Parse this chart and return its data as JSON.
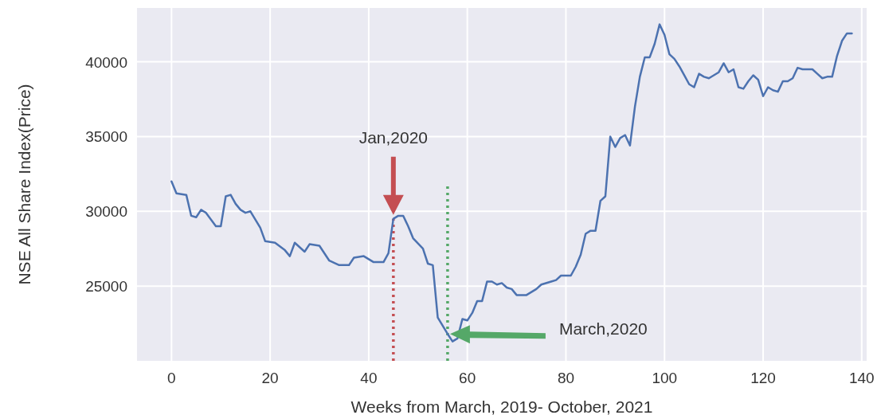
{
  "chart_data": {
    "type": "line",
    "xlabel": "Weeks from March, 2019- October, 2021",
    "ylabel": "NSE All Share Index(Price)",
    "xlim": [
      -7,
      141
    ],
    "ylim": [
      20000,
      43600
    ],
    "xticks": [
      0,
      20,
      40,
      60,
      80,
      100,
      120,
      140
    ],
    "yticks": [
      25000,
      30000,
      35000,
      40000
    ],
    "grid": true,
    "marker": "none",
    "line_style": "solid",
    "x": [
      0,
      1,
      3,
      4,
      5,
      6,
      7,
      9,
      10,
      11,
      12,
      13,
      14,
      15,
      16,
      18,
      19,
      21,
      23,
      24,
      25,
      27,
      28,
      30,
      32,
      34,
      36,
      37,
      39,
      41,
      43,
      44,
      45,
      46,
      47,
      48,
      49,
      51,
      52,
      53,
      54,
      56,
      57,
      58,
      59,
      60,
      61,
      62,
      63,
      64,
      65,
      66,
      67,
      68,
      69,
      70,
      72,
      74,
      75,
      77,
      78,
      79,
      81,
      82,
      83,
      84,
      85,
      86,
      87,
      88,
      89,
      90,
      91,
      92,
      93,
      94,
      95,
      96,
      97,
      98,
      99,
      100,
      101,
      102,
      103,
      104,
      105,
      106,
      107,
      108,
      109,
      111,
      112,
      113,
      114,
      115,
      116,
      117,
      118,
      119,
      120,
      121,
      122,
      123,
      124,
      125,
      126,
      127,
      128,
      130,
      131,
      132,
      133,
      134,
      135,
      136,
      137,
      138
    ],
    "series": [
      {
        "color": "#4c72b0",
        "values": [
          32000,
          31200,
          31100,
          29700,
          29600,
          30100,
          29900,
          29000,
          29000,
          31000,
          31100,
          30500,
          30100,
          29900,
          30000,
          28900,
          28000,
          27900,
          27400,
          27000,
          27900,
          27300,
          27800,
          27700,
          26700,
          26400,
          26400,
          26900,
          27000,
          26600,
          26600,
          27200,
          29500,
          29700,
          29700,
          29000,
          28200,
          27500,
          26500,
          26400,
          22900,
          21800,
          21300,
          21500,
          22800,
          22700,
          23200,
          24000,
          24000,
          25300,
          25300,
          25100,
          25200,
          24900,
          24800,
          24400,
          24400,
          24800,
          25100,
          25300,
          25400,
          25700,
          25700,
          26300,
          27100,
          28500,
          28700,
          28700,
          30700,
          31000,
          35000,
          34300,
          34900,
          35100,
          34400,
          37000,
          39000,
          40300,
          40300,
          41200,
          42500,
          41800,
          40500,
          40200,
          39700,
          39100,
          38500,
          38300,
          39200,
          39000,
          38900,
          39300,
          39900,
          39300,
          39500,
          38300,
          38200,
          38700,
          39100,
          38800,
          37700,
          38300,
          38100,
          38000,
          38700,
          38700,
          38900,
          39600,
          39500,
          39500,
          39200,
          38900,
          39000,
          39000,
          40400,
          41400,
          41900,
          41900
        ]
      }
    ],
    "ref_lines": [
      {
        "axis": "x",
        "value": 45,
        "color": "#c44e52",
        "line_style": "dotted"
      },
      {
        "axis": "x",
        "value": 56,
        "color": "#55a868",
        "line_style": "dotted"
      }
    ],
    "annotations": [
      "Jan,2020",
      "March,2020"
    ]
  }
}
